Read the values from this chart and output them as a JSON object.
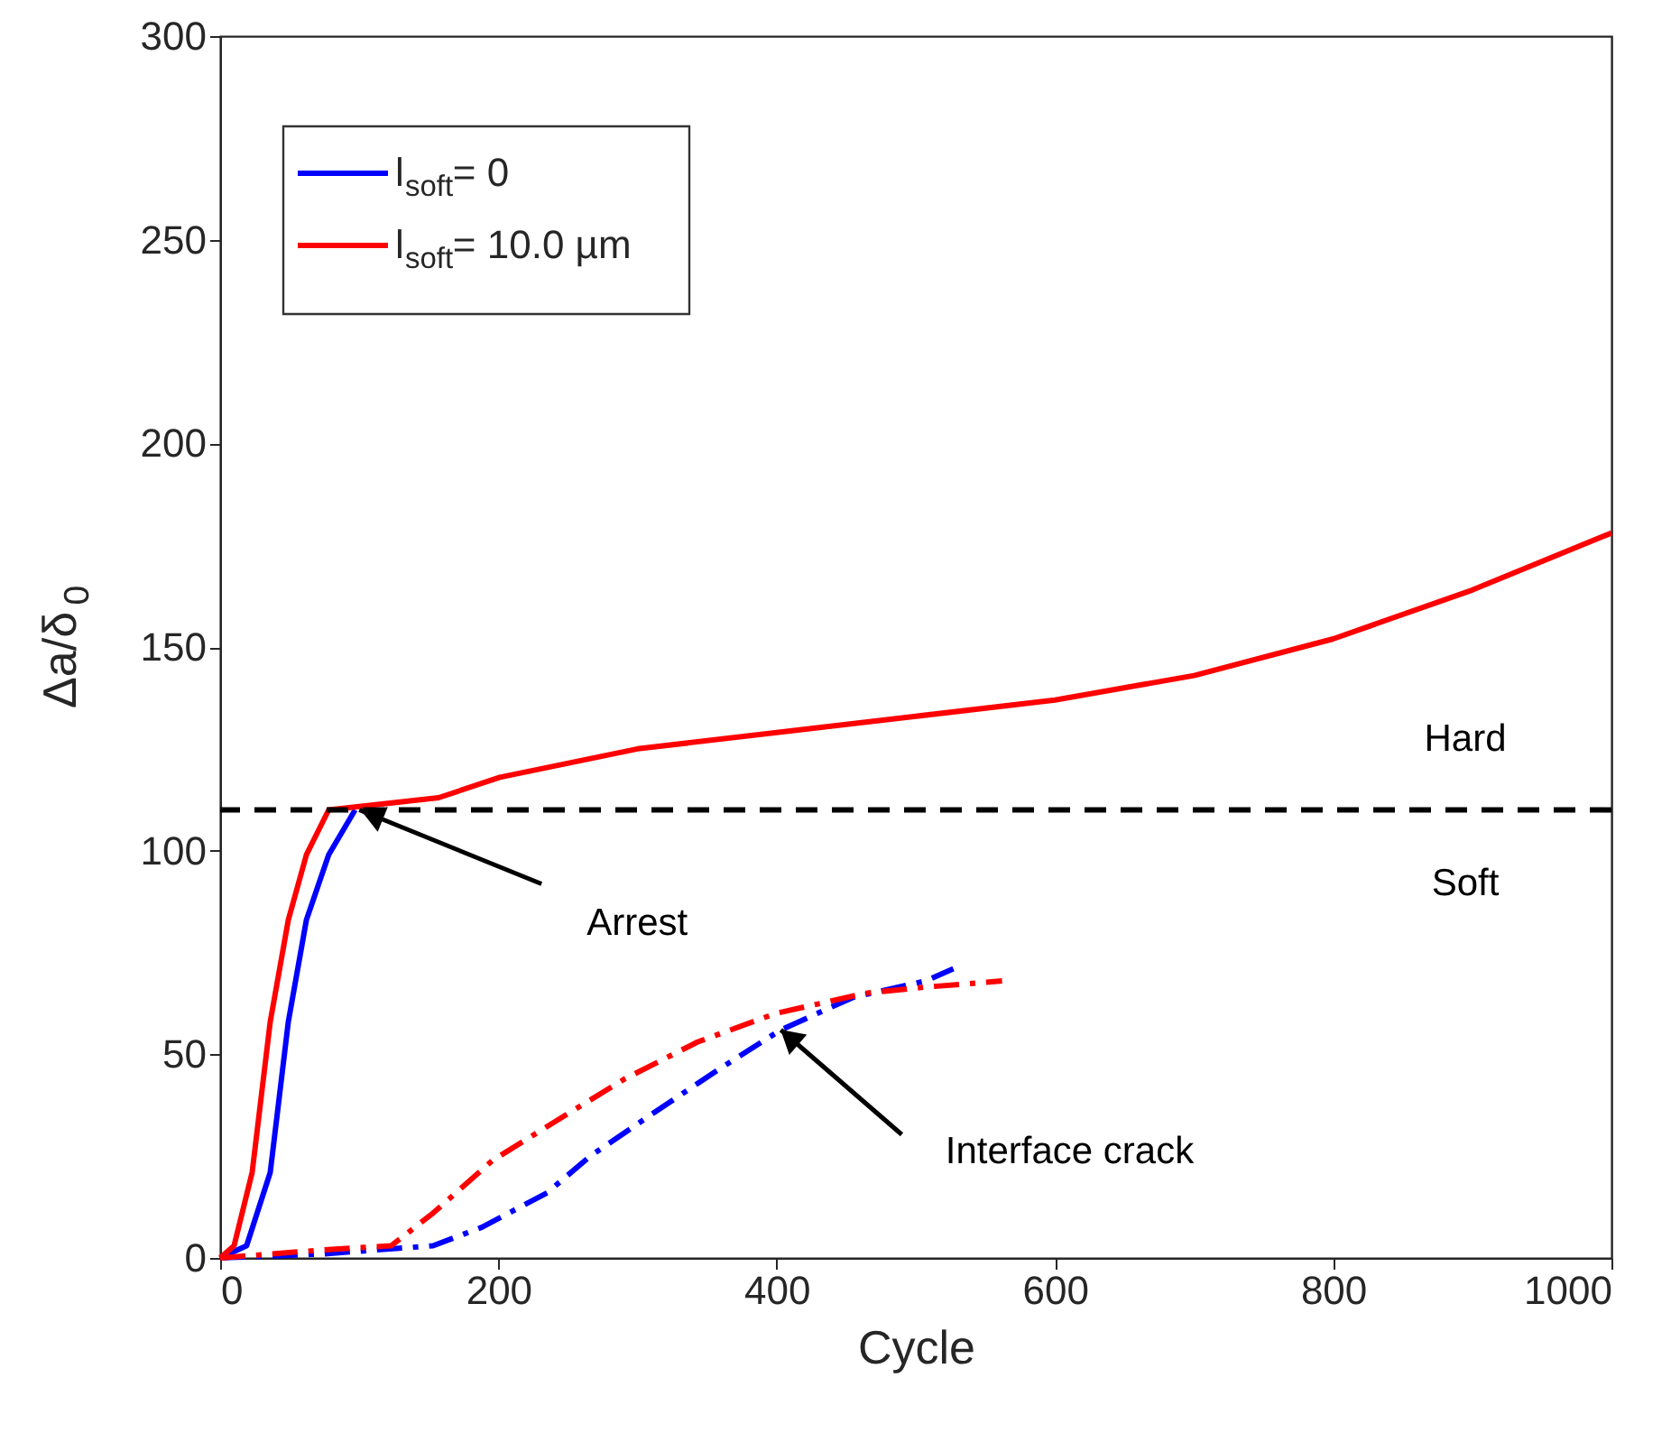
{
  "chart_data": {
    "type": "line",
    "xlabel": "Cycle",
    "ylabel": "Δa/δ$_{0}$",
    "xlim": [
      0,
      1000
    ],
    "ylim": [
      0,
      300
    ],
    "xticks": [
      0,
      200,
      400,
      600,
      800,
      {
        "value": 1000,
        "label": "1000"
      }
    ],
    "yticks": [
      0,
      50,
      100,
      150,
      200,
      250,
      300
    ],
    "grid": false,
    "legend": "top left",
    "series": [
      {
        "name": "l$_{soft}$= 0",
        "color": "#0000ff",
        "line_style": "solid",
        "x": [
          0,
          19,
          36,
          49,
          62,
          78,
          97
        ],
        "values": [
          0,
          3,
          21,
          58,
          83,
          99,
          110
        ]
      },
      {
        "name": "l$_{soft}$= 10.0 µm",
        "color": "#ff0000",
        "line_style": "solid",
        "x": [
          0,
          10,
          23,
          36,
          49,
          62,
          78,
          157,
          201,
          300,
          400,
          500,
          600,
          700,
          800,
          900,
          1000
        ],
        "values": [
          0,
          3,
          21,
          58,
          83,
          99,
          110,
          113,
          118,
          125,
          129,
          133,
          137,
          143,
          152,
          164,
          178
        ]
      },
      {
        "color": "#0000ff",
        "line_style": "dashed",
        "x": [
          0,
          75,
          153,
          188,
          235,
          266,
          309,
          357,
          403,
          455,
          507,
          527
        ],
        "values": [
          0,
          1,
          3,
          7.5,
          16,
          25,
          35,
          46,
          56,
          64,
          68,
          71
        ]
      },
      {
        "color": "#ff0000",
        "line_style": "dashed",
        "x": [
          0,
          75,
          123,
          153,
          196,
          248,
          291,
          343,
          399,
          464,
          507,
          562
        ],
        "values": [
          0,
          2,
          3,
          11,
          24,
          35,
          44,
          53,
          60,
          65,
          66.5,
          68
        ]
      }
    ],
    "ref_lines": [
      {
        "axis": "y",
        "value": 110,
        "color": "#000000",
        "line_style": "dashed"
      }
    ],
    "annotations": [
      "Hard",
      "Soft",
      {
        "text": "Arrest",
        "x": 100,
        "y": 110
      },
      {
        "text": "Interface crack",
        "x": 403,
        "y": 56
      }
    ]
  }
}
